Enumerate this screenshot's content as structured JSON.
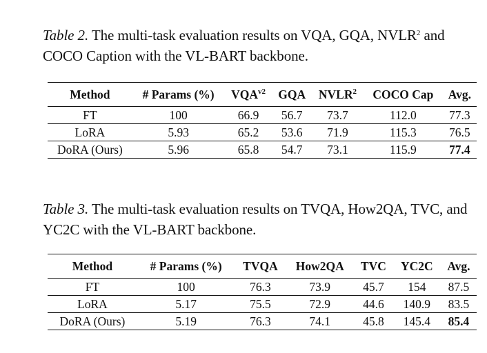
{
  "table2": {
    "caption_label": "Table 2.",
    "caption_text": " The multi-task evaluation results on VQA, GQA, NVLR",
    "caption_sup": "2",
    "caption_text2": " and COCO Caption with the VL-BART backbone.",
    "headers": {
      "method": "Method",
      "params": "# Params (%)",
      "vqa": "VQA",
      "vqa_sup": "v2",
      "gqa": "GQA",
      "nvlr": "NVLR",
      "nvlr_sup": "2",
      "coco": "COCO Cap",
      "avg": "Avg."
    },
    "rows": [
      {
        "method": "FT",
        "params": "100",
        "vqa": "66.9",
        "gqa": "56.7",
        "nvlr": "73.7",
        "coco": "112.0",
        "avg": "77.3"
      },
      {
        "method": "LoRA",
        "params": "5.93",
        "vqa": "65.2",
        "gqa": "53.6",
        "nvlr": "71.9",
        "coco": "115.3",
        "avg": "76.5"
      },
      {
        "method": "DoRA (Ours)",
        "params": "5.96",
        "vqa": "65.8",
        "gqa": "54.7",
        "nvlr": "73.1",
        "coco": "115.9",
        "avg": "77.4"
      }
    ]
  },
  "table3": {
    "caption_label": "Table 3.",
    "caption_text": " The multi-task evaluation results on TVQA, How2QA, TVC, and YC2C with the VL-BART backbone.",
    "headers": {
      "method": "Method",
      "params": "# Params (%)",
      "tvqa": "TVQA",
      "how2qa": "How2QA",
      "tvc": "TVC",
      "yc2c": "YC2C",
      "avg": "Avg."
    },
    "rows": [
      {
        "method": "FT",
        "params": "100",
        "tvqa": "76.3",
        "how2qa": "73.9",
        "tvc": "45.7",
        "yc2c": "154",
        "avg": "87.5"
      },
      {
        "method": "LoRA",
        "params": "5.17",
        "tvqa": "75.5",
        "how2qa": "72.9",
        "tvc": "44.6",
        "yc2c": "140.9",
        "avg": "83.5"
      },
      {
        "method": "DoRA (Ours)",
        "params": "5.19",
        "tvqa": "76.3",
        "how2qa": "74.1",
        "tvc": "45.8",
        "yc2c": "145.4",
        "avg": "85.4"
      }
    ]
  }
}
